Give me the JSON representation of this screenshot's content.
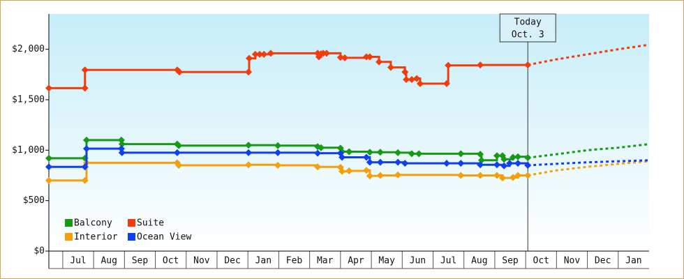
{
  "chart_data": {
    "type": "step",
    "xlim": [
      0.55,
      20
    ],
    "xticks": [
      {
        "value": 1,
        "label": "Jul"
      },
      {
        "value": 2,
        "label": "Aug"
      },
      {
        "value": 3,
        "label": "Sep"
      },
      {
        "value": 4,
        "label": "Oct"
      },
      {
        "value": 5,
        "label": "Nov"
      },
      {
        "value": 6,
        "label": "Dec"
      },
      {
        "value": 7,
        "label": "Jan"
      },
      {
        "value": 8,
        "label": "Feb"
      },
      {
        "value": 9,
        "label": "Mar"
      },
      {
        "value": 10,
        "label": "Apr"
      },
      {
        "value": 11,
        "label": "May"
      },
      {
        "value": 12,
        "label": "Jun"
      },
      {
        "value": 13,
        "label": "Jul"
      },
      {
        "value": 14,
        "label": "Aug"
      },
      {
        "value": 15,
        "label": "Sep"
      },
      {
        "value": 16,
        "label": "Oct"
      },
      {
        "value": 17,
        "label": "Nov"
      },
      {
        "value": 18,
        "label": "Dec"
      },
      {
        "value": 19,
        "label": "Jan"
      }
    ],
    "ylim": [
      0,
      2350
    ],
    "yticks": [
      {
        "value": 0,
        "label": "$0"
      },
      {
        "value": 500,
        "label": "$500"
      },
      {
        "value": 1000,
        "label": "$1,000"
      },
      {
        "value": 1500,
        "label": "$1,500"
      },
      {
        "value": 2000,
        "label": "$2,000"
      }
    ],
    "today": {
      "x": 16.07,
      "label": "Today",
      "date": "Oct. 3"
    },
    "forecast_x": [
      16.07,
      17,
      18,
      19,
      20
    ],
    "legend": "lower left",
    "series": [
      {
        "name": "Balcony",
        "color": "#149a14",
        "x": [
          0.55,
          1.72,
          1.77,
          2.9,
          2.92,
          4.71,
          4.76,
          7.02,
          7.97,
          9.26,
          9.37,
          10.0,
          10.05,
          10.28,
          10.95,
          11.29,
          11.86,
          12.31,
          12.54,
          13.9,
          14.53,
          14.57,
          15.07,
          15.25,
          15.3,
          15.59,
          15.75,
          16.07
        ],
        "values": [
          920,
          920,
          1100,
          1100,
          1060,
          1060,
          1045,
          1050,
          1045,
          1035,
          1025,
          1020,
          985,
          985,
          980,
          980,
          975,
          965,
          965,
          965,
          960,
          900,
          945,
          945,
          910,
          930,
          935,
          925
        ],
        "forecast_values": [
          925,
          960,
          1000,
          1025,
          1060
        ]
      },
      {
        "name": "Suite",
        "color": "#f23c0c",
        "x": [
          0.55,
          1.72,
          1.72,
          4.71,
          4.78,
          7.02,
          7.04,
          7.24,
          7.38,
          7.52,
          7.74,
          9.26,
          9.3,
          9.37,
          9.44,
          9.55,
          10.0,
          10.14,
          10.84,
          10.95,
          11.25,
          11.63,
          12.09,
          12.13,
          12.31,
          12.47,
          12.58,
          13.44,
          13.49,
          14.53,
          16.07
        ],
        "values": [
          1615,
          1615,
          1795,
          1795,
          1775,
          1775,
          1910,
          1950,
          1950,
          1950,
          1960,
          1960,
          1925,
          1955,
          1960,
          1960,
          1920,
          1915,
          1925,
          1925,
          1875,
          1820,
          1775,
          1700,
          1700,
          1710,
          1660,
          1660,
          1840,
          1845,
          1845
        ],
        "forecast_values": [
          1845,
          1900,
          1950,
          2000,
          2045
        ]
      },
      {
        "name": "Interior",
        "color": "#f5a00a",
        "x": [
          0.55,
          1.72,
          1.77,
          4.71,
          4.76,
          7.02,
          7.97,
          9.26,
          10.0,
          10.05,
          10.28,
          10.84,
          10.95,
          11.29,
          11.86,
          13.9,
          14.53,
          15.07,
          15.25,
          15.59,
          15.75,
          16.07
        ],
        "values": [
          700,
          700,
          875,
          875,
          850,
          855,
          850,
          835,
          830,
          790,
          795,
          800,
          745,
          750,
          755,
          750,
          750,
          750,
          725,
          730,
          750,
          750
        ],
        "forecast_values": [
          750,
          800,
          835,
          865,
          890
        ]
      },
      {
        "name": "Ocean View",
        "color": "#1040ee",
        "x": [
          0.55,
          1.72,
          1.77,
          2.9,
          2.92,
          4.71,
          7.02,
          7.97,
          9.26,
          10.0,
          10.05,
          10.84,
          10.95,
          11.29,
          11.86,
          12.09,
          13.44,
          13.9,
          14.53,
          15.07,
          15.3,
          15.48,
          15.75,
          16.07
        ],
        "values": [
          835,
          835,
          1015,
          1015,
          975,
          975,
          975,
          975,
          970,
          970,
          930,
          930,
          880,
          880,
          880,
          870,
          870,
          870,
          855,
          855,
          845,
          870,
          870,
          850
        ],
        "forecast_values": [
          850,
          865,
          880,
          890,
          900
        ]
      }
    ]
  }
}
